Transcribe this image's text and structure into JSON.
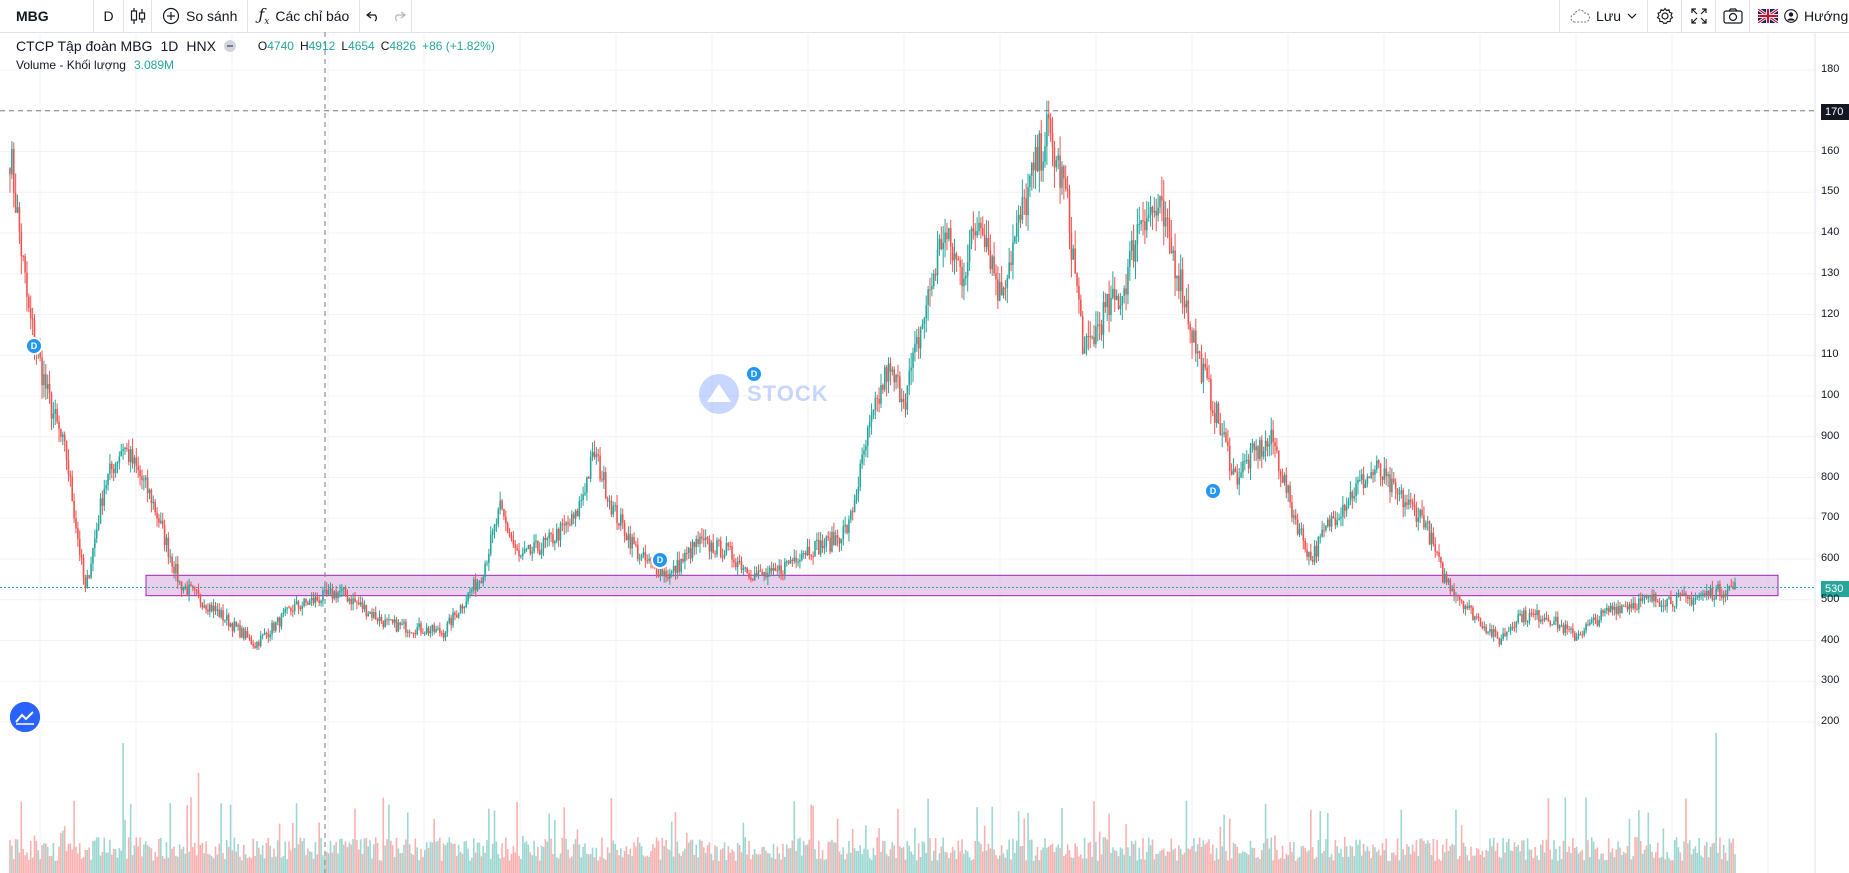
{
  "toolbar": {
    "symbol": "MBG",
    "interval": "D",
    "compare_label": "So sánh",
    "indicators_label": "Các chỉ báo",
    "save_label": "Lưu",
    "guide_label": "Hướng d"
  },
  "legend": {
    "title": "CTCP Tập đoàn MBG",
    "interval": "1D",
    "exchange": "HNX",
    "open_label": "O",
    "open": "4740",
    "high_label": "H",
    "high": "4912",
    "low_label": "L",
    "low": "4654",
    "close_label": "C",
    "close": "4826",
    "change": "+86 (+1.82%)",
    "volume_label": "Volume - Khối lượng",
    "volume_value": "3.089M"
  },
  "price_axis": {
    "labels": [
      "180",
      "170",
      "160",
      "150",
      "140",
      "130",
      "120",
      "110",
      "100",
      "900",
      "800",
      "700",
      "600",
      "530",
      "500",
      "400",
      "300",
      "200"
    ],
    "crosshair_value": "170",
    "last_value": "530"
  },
  "markers": [
    "D",
    "D",
    "D",
    "D"
  ],
  "watermark": "STOCK",
  "colors": {
    "up": "#26a69a",
    "down": "#ef5350",
    "zone_fill": "#e1bee7",
    "zone_border": "#9c27b0",
    "accent": "#2962ff"
  },
  "chart_data": {
    "type": "candlestick",
    "ylim": [
      180,
      9000
    ],
    "zone": [
      510,
      560
    ],
    "crosshair_price": 1700,
    "last_price": 530,
    "path_keypoints": [
      [
        0,
        1600
      ],
      [
        10,
        1200
      ],
      [
        20,
        1000
      ],
      [
        30,
        850
      ],
      [
        40,
        520
      ],
      [
        50,
        780
      ],
      [
        60,
        880
      ],
      [
        75,
        750
      ],
      [
        90,
        540
      ],
      [
        110,
        470
      ],
      [
        130,
        390
      ],
      [
        150,
        480
      ],
      [
        175,
        520
      ],
      [
        200,
        440
      ],
      [
        230,
        420
      ],
      [
        250,
        560
      ],
      [
        260,
        720
      ],
      [
        270,
        600
      ],
      [
        285,
        640
      ],
      [
        300,
        700
      ],
      [
        310,
        860
      ],
      [
        320,
        720
      ],
      [
        335,
        600
      ],
      [
        350,
        560
      ],
      [
        365,
        640
      ],
      [
        380,
        620
      ],
      [
        395,
        560
      ],
      [
        405,
        560
      ],
      [
        420,
        620
      ],
      [
        435,
        640
      ],
      [
        445,
        680
      ],
      [
        455,
        900
      ],
      [
        465,
        1060
      ],
      [
        475,
        1000
      ],
      [
        485,
        1200
      ],
      [
        495,
        1400
      ],
      [
        505,
        1300
      ],
      [
        515,
        1450
      ],
      [
        525,
        1250
      ],
      [
        540,
        1500
      ],
      [
        550,
        1650
      ],
      [
        560,
        1500
      ],
      [
        570,
        1100
      ],
      [
        580,
        1200
      ],
      [
        590,
        1250
      ],
      [
        600,
        1450
      ],
      [
        610,
        1450
      ],
      [
        620,
        1300
      ],
      [
        630,
        1100
      ],
      [
        640,
        950
      ],
      [
        650,
        800
      ],
      [
        660,
        860
      ],
      [
        670,
        890
      ],
      [
        680,
        720
      ],
      [
        690,
        600
      ],
      [
        700,
        690
      ],
      [
        715,
        780
      ],
      [
        725,
        820
      ],
      [
        735,
        760
      ],
      [
        750,
        700
      ],
      [
        760,
        560
      ],
      [
        775,
        470
      ],
      [
        790,
        400
      ],
      [
        800,
        460
      ],
      [
        815,
        460
      ],
      [
        830,
        410
      ],
      [
        850,
        480
      ],
      [
        870,
        500
      ],
      [
        890,
        500
      ],
      [
        905,
        520
      ],
      [
        915,
        530
      ]
    ],
    "volume_spikes": [
      [
        60,
        0.65
      ],
      [
        85,
        0.35
      ],
      [
        100,
        0.5
      ],
      [
        150,
        0.25
      ],
      [
        540,
        0.3
      ],
      [
        905,
        0.7
      ]
    ]
  }
}
